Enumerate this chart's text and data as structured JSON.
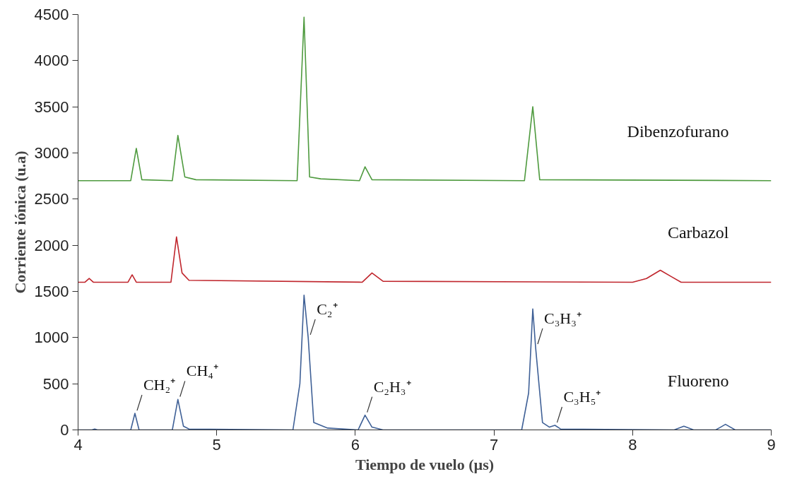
{
  "chart_data": {
    "type": "line",
    "xlabel": "Tiempo de vuelo (µs)",
    "ylabel": "Corriente iónica (u.a)",
    "xlim": [
      4,
      9
    ],
    "xticks": [
      4,
      5,
      6,
      7,
      8,
      9
    ],
    "ylim": [
      0,
      4500
    ],
    "yticks": [
      0,
      500,
      1000,
      1500,
      2000,
      2500,
      3000,
      3500,
      4000,
      4500
    ],
    "grid": false,
    "marker": "none",
    "line_style": "solid",
    "series": [
      {
        "name": "Dibenzofurano",
        "color": "#4e9a3e",
        "x": [
          4.0,
          4.38,
          4.42,
          4.46,
          4.68,
          4.72,
          4.77,
          4.85,
          5.58,
          5.63,
          5.67,
          5.75,
          6.03,
          6.07,
          6.12,
          7.22,
          7.28,
          7.33,
          9.0
        ],
        "values": [
          2700,
          2700,
          3050,
          2710,
          2700,
          3190,
          2740,
          2710,
          2700,
          4470,
          2740,
          2720,
          2700,
          2850,
          2710,
          2700,
          3500,
          2710,
          2700
        ]
      },
      {
        "name": "Carbazol",
        "color": "#c0262d",
        "x": [
          4.0,
          4.05,
          4.08,
          4.11,
          4.36,
          4.39,
          4.42,
          4.67,
          4.71,
          4.75,
          4.8,
          6.05,
          6.12,
          6.2,
          8.0,
          8.1,
          8.2,
          8.28,
          8.35,
          9.0
        ],
        "values": [
          1600,
          1600,
          1640,
          1600,
          1600,
          1680,
          1600,
          1600,
          2090,
          1700,
          1620,
          1600,
          1700,
          1610,
          1600,
          1640,
          1730,
          1660,
          1600,
          1600
        ]
      },
      {
        "name": "Fluoreno",
        "color": "#3f6096",
        "x": [
          4.0,
          4.1,
          4.12,
          4.14,
          4.38,
          4.41,
          4.44,
          4.68,
          4.72,
          4.76,
          4.8,
          5.55,
          5.6,
          5.63,
          5.66,
          5.7,
          5.8,
          6.02,
          6.07,
          6.12,
          6.2,
          7.2,
          7.25,
          7.28,
          7.3,
          7.35,
          7.4,
          7.44,
          7.48,
          8.3,
          8.37,
          8.44,
          8.6,
          8.67,
          8.74,
          9.0
        ],
        "values": [
          0,
          0,
          10,
          0,
          0,
          180,
          0,
          0,
          330,
          40,
          10,
          0,
          500,
          1460,
          1000,
          80,
          20,
          0,
          160,
          30,
          0,
          0,
          400,
          1310,
          900,
          80,
          30,
          50,
          10,
          0,
          40,
          0,
          0,
          60,
          0,
          0
        ]
      }
    ],
    "annotations": [
      {
        "text": "CH₂⁺",
        "x": 4.41,
        "y": 180
      },
      {
        "text": "CH₄⁺",
        "x": 4.72,
        "y": 330
      },
      {
        "text": "C₂⁺",
        "x": 5.66,
        "y": 1000
      },
      {
        "text": "C₂H₃⁺",
        "x": 6.07,
        "y": 160
      },
      {
        "text": "C₃H₃⁺",
        "x": 7.3,
        "y": 900
      },
      {
        "text": "C₃H₅⁺",
        "x": 7.44,
        "y": 50
      }
    ]
  }
}
